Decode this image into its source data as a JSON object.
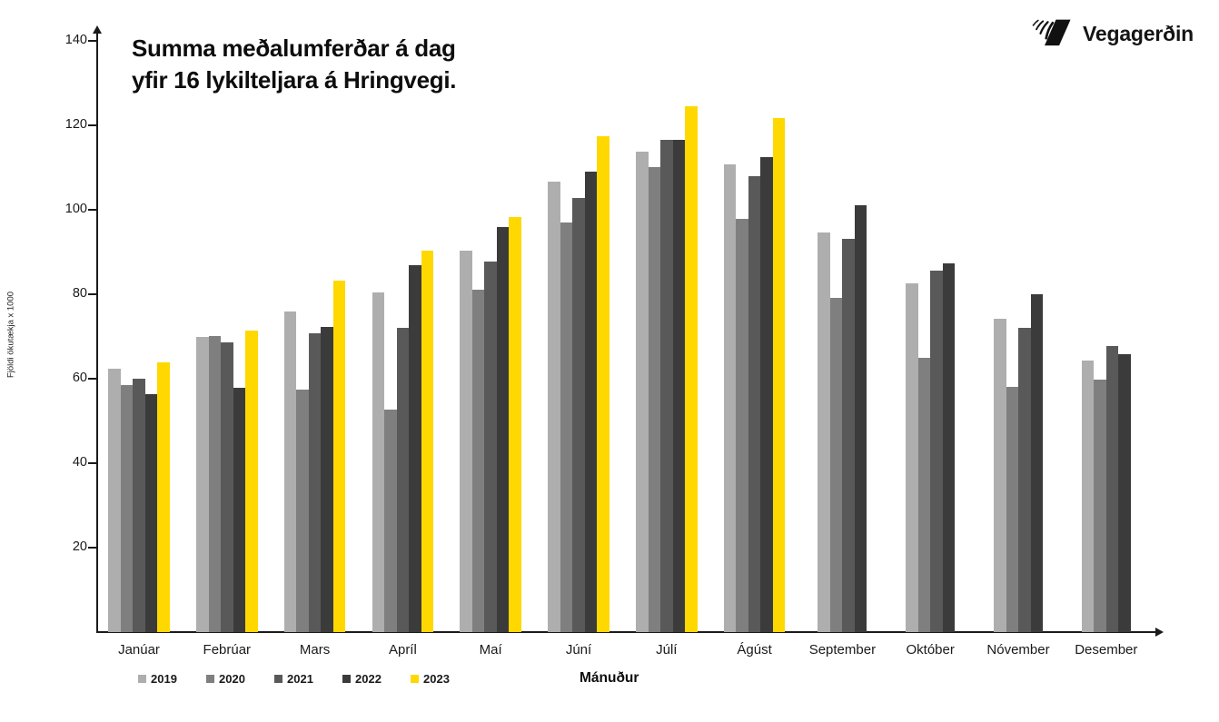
{
  "header": {
    "title_line1": "Summa meðalumferðar á dag",
    "title_line2": "yfir 16 lykilteljara á Hringvegi.",
    "logo_text": "Vegagerðin"
  },
  "chart_data": {
    "type": "bar",
    "title": "Summa meðalumferðar á dag yfir 16 lykilteljara á Hringvegi.",
    "xlabel": "Mánuður",
    "ylabel": "Fjöldi ökutækja x 1000",
    "ylim": [
      0,
      140
    ],
    "yticks": [
      20,
      40,
      60,
      80,
      100,
      120,
      140
    ],
    "grid": false,
    "legend_position": "bottom-left",
    "categories": [
      "Janúar",
      "Febrúar",
      "Mars",
      "Apríl",
      "Maí",
      "Júní",
      "Júlí",
      "Ágúst",
      "September",
      "Október",
      "Nóvember",
      "Desember"
    ],
    "series": [
      {
        "name": "2019",
        "color": "#aeaeae",
        "values": [
          62.4,
          69.8,
          75.9,
          80.4,
          90.3,
          106.7,
          113.8,
          110.8,
          94.6,
          82.6,
          74.1,
          64.3
        ]
      },
      {
        "name": "2020",
        "color": "#7f7f7f",
        "values": [
          58.4,
          70.2,
          57.4,
          52.6,
          81.0,
          97.0,
          110.1,
          97.8,
          79.1,
          65.0,
          58.1,
          59.7
        ]
      },
      {
        "name": "2021",
        "color": "#595959",
        "values": [
          60.0,
          68.5,
          70.8,
          72.1,
          87.8,
          102.8,
          116.5,
          108.0,
          93.1,
          85.5,
          72.0,
          67.8
        ]
      },
      {
        "name": "2022",
        "color": "#3b3b3b",
        "values": [
          56.4,
          57.8,
          72.3,
          86.9,
          95.9,
          109.0,
          116.5,
          112.5,
          101.0,
          87.3,
          80.1,
          65.9
        ]
      },
      {
        "name": "2023",
        "color": "#ffd800",
        "values": [
          63.8,
          71.5,
          83.2,
          90.4,
          98.2,
          117.4,
          124.6,
          121.7,
          null,
          null,
          null,
          null
        ]
      }
    ]
  }
}
